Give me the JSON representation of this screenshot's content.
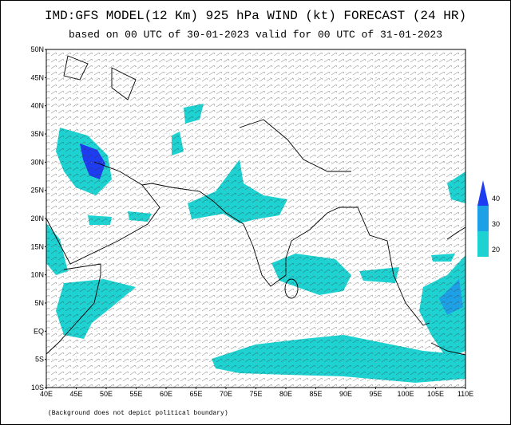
{
  "title": "IMD:GFS MODEL(12 Km) 925 hPa WIND (kt) FORECAST (24 HR)",
  "subtitle": "based on 00 UTC of 30-01-2023 valid for 00 UTC of 31-01-2023",
  "lat_labels": [
    "50N",
    "45N",
    "40N",
    "35N",
    "30N",
    "25N",
    "20N",
    "15N",
    "10N",
    "5N",
    "EQ",
    "5S",
    "10S"
  ],
  "lon_labels": [
    "40E",
    "45E",
    "50E",
    "55E",
    "60E",
    "65E",
    "70E",
    "75E",
    "80E",
    "85E",
    "90E",
    "95E",
    "100E",
    "105E",
    "110E"
  ],
  "legend": {
    "labels": [
      40,
      30,
      20
    ],
    "colors": [
      "#1e3cf0",
      "#1ea0e6",
      "#1ed2d2"
    ]
  },
  "footnote": "(Background does not depict political boundary)"
}
